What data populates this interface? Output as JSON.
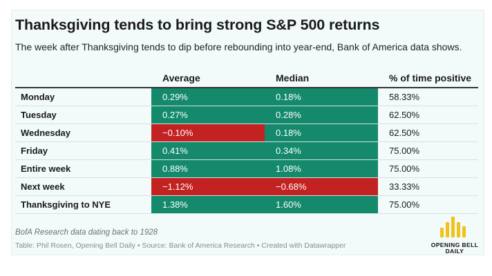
{
  "title": "Thanksgiving tends to bring strong S&P 500 returns",
  "subtitle": "The week after Thanksgiving tends to dip before rebounding into year-end, Bank of America data shows.",
  "colors": {
    "positive": "#14896b",
    "negative": "#c32222",
    "logo": "#f2c21b"
  },
  "chart_data": {
    "type": "table",
    "columns": [
      "",
      "Average",
      "Median",
      "% of time positive"
    ],
    "rows": [
      {
        "label": "Monday",
        "average": "0.29%",
        "median": "0.18%",
        "pct_positive": "58.33%",
        "average_value": 0.29,
        "median_value": 0.18
      },
      {
        "label": "Tuesday",
        "average": "0.27%",
        "median": "0.28%",
        "pct_positive": "62.50%",
        "average_value": 0.27,
        "median_value": 0.28
      },
      {
        "label": "Wednesday",
        "average": "−0.10%",
        "median": "0.18%",
        "pct_positive": "62.50%",
        "average_value": -0.1,
        "median_value": 0.18
      },
      {
        "label": "Friday",
        "average": "0.41%",
        "median": "0.34%",
        "pct_positive": "75.00%",
        "average_value": 0.41,
        "median_value": 0.34
      },
      {
        "label": "Entire week",
        "average": "0.88%",
        "median": "1.08%",
        "pct_positive": "75.00%",
        "average_value": 0.88,
        "median_value": 1.08
      },
      {
        "label": "Next week",
        "average": "−1.12%",
        "median": "−0.68%",
        "pct_positive": "33.33%",
        "average_value": -1.12,
        "median_value": -0.68
      },
      {
        "label": "Thanksgiving to NYE",
        "average": "1.38%",
        "median": "1.60%",
        "pct_positive": "75.00%",
        "average_value": 1.38,
        "median_value": 1.6
      }
    ]
  },
  "note": "BofA Research data dating back to 1928",
  "source": "Table: Phil Rosen, Opening Bell Daily • Source: Bank of America Research • Created with Datawrapper",
  "logo": {
    "icon": "bar-chart-logo-icon",
    "line1": "OPENING BELL",
    "line2": "DAILY"
  }
}
